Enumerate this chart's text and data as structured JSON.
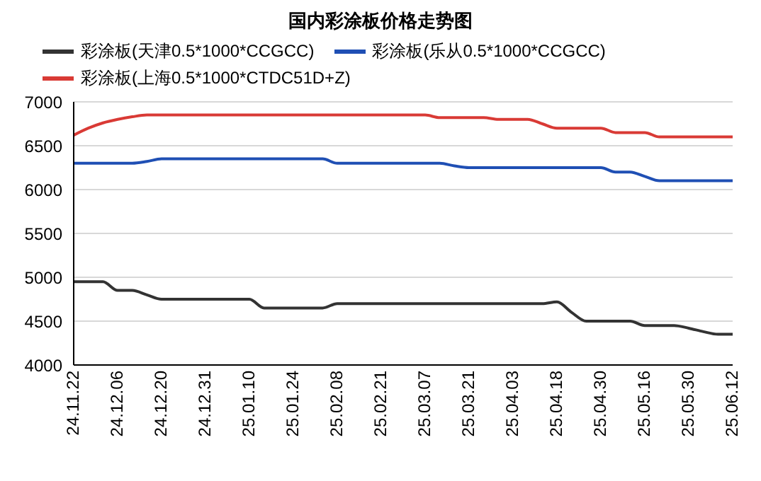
{
  "chart_data": {
    "type": "line",
    "title": "国内彩涂板价格走势图",
    "categories": [
      "24.11.22",
      null,
      null,
      "24.12.06",
      null,
      null,
      "24.12.20",
      null,
      null,
      "24.12.31",
      null,
      null,
      "25.01.10",
      null,
      null,
      "25.01.24",
      null,
      null,
      "25.02.08",
      null,
      null,
      "25.02.21",
      null,
      null,
      "25.03.07",
      null,
      null,
      "25.03.21",
      null,
      null,
      "25.04.03",
      null,
      null,
      "25.04.18",
      null,
      null,
      "25.04.30",
      null,
      null,
      "25.05.16",
      null,
      null,
      "25.05.30",
      null,
      null,
      "25.06.12"
    ],
    "series": [
      {
        "name": "彩涂板(天津0.5*1000*CCGCC)",
        "color": "#333333",
        "values": [
          4950,
          4950,
          4950,
          4850,
          4850,
          4800,
          4750,
          4750,
          4750,
          4750,
          4750,
          4750,
          4750,
          4650,
          4650,
          4650,
          4650,
          4650,
          4700,
          4700,
          4700,
          4700,
          4700,
          4700,
          4700,
          4700,
          4700,
          4700,
          4700,
          4700,
          4700,
          4700,
          4700,
          4720,
          4600,
          4500,
          4500,
          4500,
          4500,
          4450,
          4450,
          4450,
          4420,
          4380,
          4350,
          4350
        ]
      },
      {
        "name": "彩涂板(乐从0.5*1000*CCGCC)",
        "color": "#1f4fb4",
        "values": [
          6300,
          6300,
          6300,
          6300,
          6300,
          6320,
          6350,
          6350,
          6350,
          6350,
          6350,
          6350,
          6350,
          6350,
          6350,
          6350,
          6350,
          6350,
          6300,
          6300,
          6300,
          6300,
          6300,
          6300,
          6300,
          6300,
          6270,
          6250,
          6250,
          6250,
          6250,
          6250,
          6250,
          6250,
          6250,
          6250,
          6250,
          6200,
          6200,
          6150,
          6100,
          6100,
          6100,
          6100,
          6100,
          6100
        ]
      },
      {
        "name": "彩涂板(上海0.5*1000*CTDC51D+Z)",
        "color": "#d93a35",
        "values": [
          6620,
          6700,
          6760,
          6800,
          6830,
          6850,
          6850,
          6850,
          6850,
          6850,
          6850,
          6850,
          6850,
          6850,
          6850,
          6850,
          6850,
          6850,
          6850,
          6850,
          6850,
          6850,
          6850,
          6850,
          6850,
          6820,
          6820,
          6820,
          6820,
          6800,
          6800,
          6800,
          6750,
          6700,
          6700,
          6700,
          6700,
          6650,
          6650,
          6650,
          6600,
          6600,
          6600,
          6600,
          6600,
          6600
        ]
      }
    ],
    "ylim": [
      4000,
      7000
    ],
    "yticks": [
      4000,
      4500,
      5000,
      5500,
      6000,
      6500,
      7000
    ],
    "grid": "y",
    "legend": "top",
    "marker": "none",
    "line_style": "solid"
  }
}
